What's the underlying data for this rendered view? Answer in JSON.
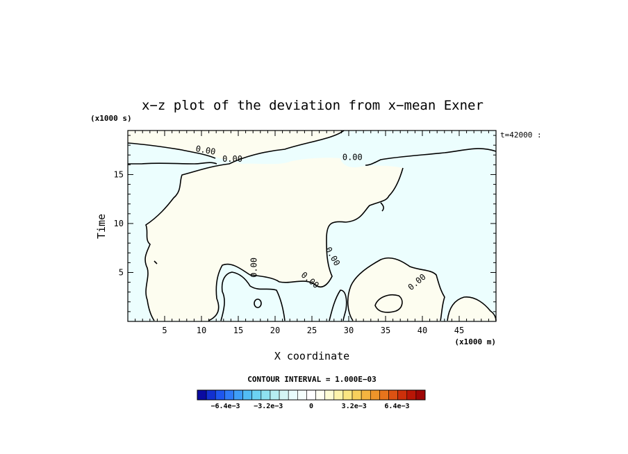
{
  "chart_data": {
    "type": "heatmap",
    "title": "x−z plot of the deviation from x−mean Exner",
    "xlabel": "X coordinate",
    "ylabel": "Time",
    "x_unit": "(x1000 m)",
    "y_unit": "(x1000 s)",
    "time_label": "t=42000 :",
    "xlim": [
      0,
      50
    ],
    "ylim": [
      0,
      19.5
    ],
    "x_ticks": [
      "5",
      "10",
      "15",
      "20",
      "25",
      "30",
      "35",
      "40",
      "45"
    ],
    "y_ticks": [
      "5",
      "10",
      "15"
    ],
    "contour_interval_text": "CONTOUR INTERVAL = 1.000E−03",
    "contour_labels": [
      {
        "text": "0.00",
        "x": 10.5,
        "y": 17.2
      },
      {
        "text": "0.00",
        "x": 14.2,
        "y": 16.3
      },
      {
        "text": "0.00",
        "x": 30.5,
        "y": 16.5
      },
      {
        "text": "0.00",
        "x": 17.5,
        "y": 5.5
      },
      {
        "text": "0.00",
        "x": 24.5,
        "y": 4.0
      },
      {
        "text": "0.00",
        "x": 27.5,
        "y": 6.5
      },
      {
        "text": "0.00",
        "x": 39.5,
        "y": 3.8
      }
    ],
    "colorbar": {
      "tick_labels": [
        "−6.4e−3",
        "−3.2e−3",
        "0",
        "3.2e−3",
        "6.4e−3"
      ],
      "tick_values": [
        -0.0064,
        -0.0032,
        0,
        0.0032,
        0.0064
      ],
      "range": [
        -0.0085,
        0.0085
      ],
      "colors": [
        "#0a0aa0",
        "#1230d0",
        "#1e56ee",
        "#2f7af8",
        "#3f9ef8",
        "#52bcf4",
        "#6cd2f2",
        "#8ee2f0",
        "#b6eef2",
        "#d4f6f4",
        "#e8fcfc",
        "#f4fefc",
        "#ffffff",
        "#fffff2",
        "#fefcd4",
        "#fdf4ac",
        "#fbe682",
        "#f8d05c",
        "#f4b440",
        "#ee942a",
        "#e6741c",
        "#dc5212",
        "#cc300a",
        "#b81606",
        "#9e0606"
      ]
    },
    "colors": {
      "positive_fill": "#fdfdf0",
      "negative_fill": "#ecfefe"
    }
  }
}
